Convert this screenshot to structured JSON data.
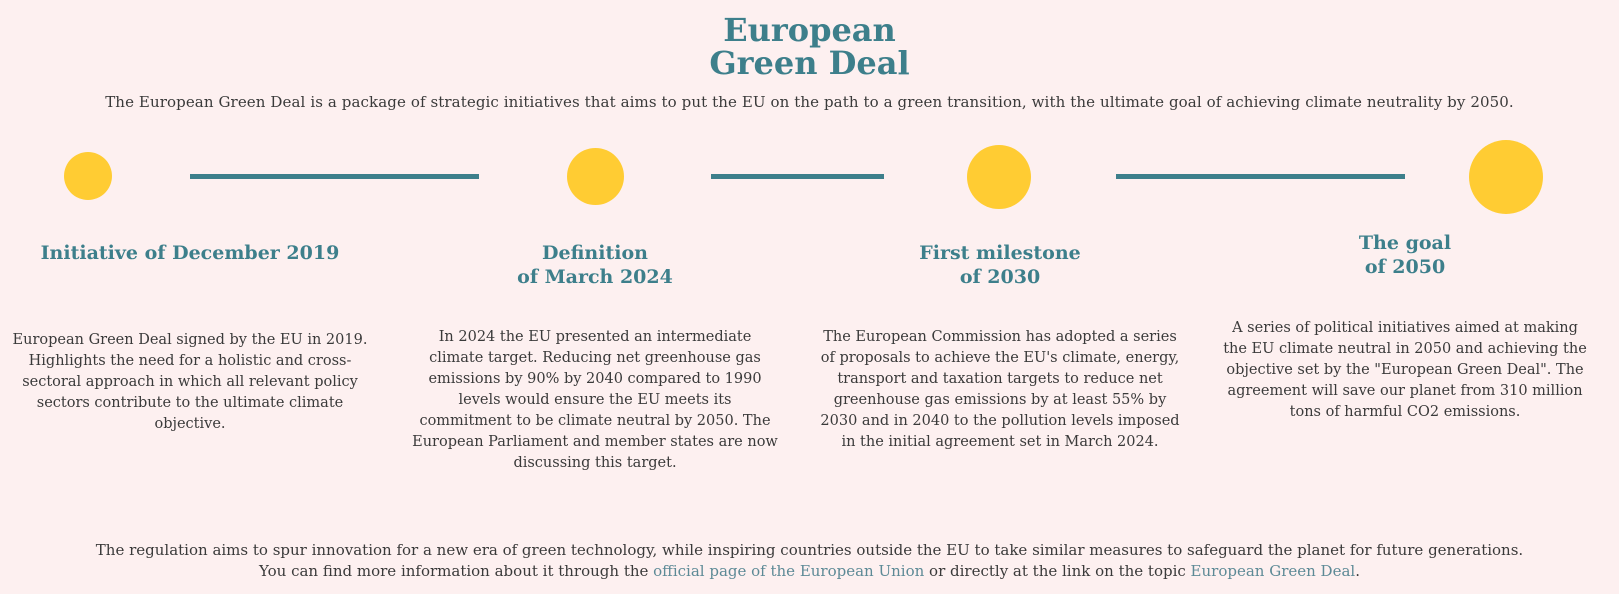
{
  "title": {
    "line1": "European",
    "line2": "Green Deal"
  },
  "intro": "The European Green Deal is a package of strategic initiatives that aims to put the EU on the path to a green transition, with the ultimate goal of achieving climate neutrality by 2050.",
  "timeline": [
    {
      "title_line1": "Initiative of December 2019",
      "title_line2": "",
      "text": "European Green Deal signed by the EU in 2019. Highlights the need for a holistic and cross-sectoral approach in which all relevant policy sectors contribute to the ultimate climate objective."
    },
    {
      "title_line1": "Definition",
      "title_line2": "of March 2024",
      "text": "In 2024 the EU presented an intermediate climate target. Reducing net greenhouse gas emissions by 90% by 2040 compared to 1990 levels would ensure the EU meets its commitment to be climate neutral by 2050. The European Parliament and member states are now discussing this target."
    },
    {
      "title_line1": "First milestone",
      "title_line2": "of 2030",
      "text": "The European Commission has adopted a series of proposals to achieve the EU's climate, energy, transport and taxation targets to reduce net greenhouse gas emissions by at least 55% by 2030 and in 2040 to the pollution levels imposed in the initial agreement set in March 2024."
    },
    {
      "title_line1": "The goal",
      "title_line2": "of 2050",
      "text": "A series of political initiatives aimed at making the EU climate neutral in 2050 and achieving the objective set by the \"European Green Deal\". The agreement will save our planet from 310 million tons of harmful CO2 emissions."
    }
  ],
  "footer": {
    "line1": "The regulation aims to spur innovation for a new era of green technology, while inspiring countries outside the EU to take similar measures to safeguard the planet for future generations.",
    "line2_prefix": "You can find more information about it through the ",
    "link1": "official page of the European Union",
    "line2_middle": " or directly at the link on the topic ",
    "link2": "European Green Deal",
    "line2_suffix": "."
  },
  "colors": {
    "background": "#fdf0f0",
    "accent": "#3d7f8b",
    "circle": "#ffcc33",
    "link": "#5d8a96",
    "text": "#3a3a3a"
  }
}
